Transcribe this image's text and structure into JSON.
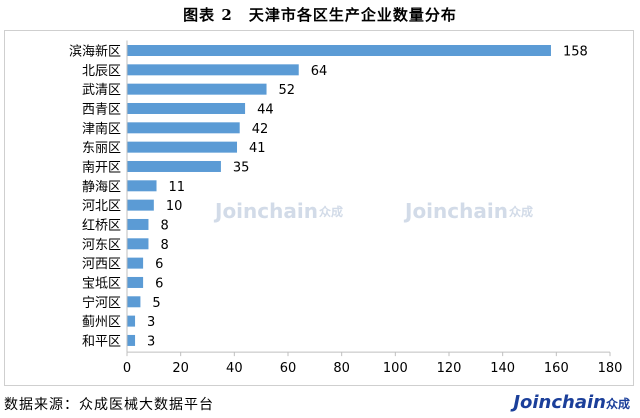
{
  "title": "图表 2　天津市各区生产企业数量分布",
  "source": "数据来源：众成医械大数据平台",
  "brand": {
    "text": "Joinchain",
    "cn": "众成"
  },
  "watermark": {
    "text": "Joinchain",
    "cn": "众成"
  },
  "colors": {
    "bar": "#5b9bd5",
    "axis": "#bfbfbf",
    "brand": "#1b3f9a"
  },
  "chart_data": {
    "type": "bar",
    "orientation": "horizontal",
    "categories": [
      "滨海新区",
      "北辰区",
      "武清区",
      "西青区",
      "津南区",
      "东丽区",
      "南开区",
      "静海区",
      "河北区",
      "红桥区",
      "河东区",
      "河西区",
      "宝坻区",
      "宁河区",
      "蓟州区",
      "和平区"
    ],
    "values": [
      158,
      64,
      52,
      44,
      42,
      41,
      35,
      11,
      10,
      8,
      8,
      6,
      6,
      5,
      3,
      3
    ],
    "xlim": [
      0,
      180
    ],
    "xticks": [
      0,
      20,
      40,
      60,
      80,
      100,
      120,
      140,
      160,
      180
    ],
    "grid": false,
    "data_labels": true
  }
}
